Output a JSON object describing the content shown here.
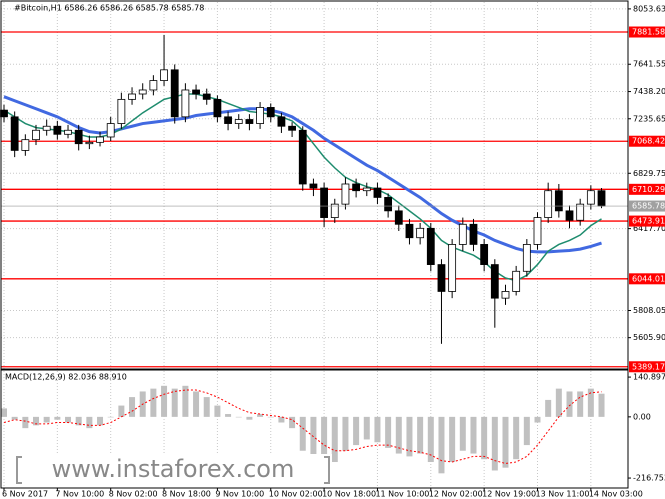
{
  "watermark": "www.instaforex.com",
  "chart_data": [
    {
      "type": "candlestick",
      "title": "#Bitcoin,H1  6586.26 6586.26 6585.78 6585.78",
      "categories": [
        "6 Nov 2017",
        null,
        null,
        null,
        null,
        "7 Nov 10:00",
        null,
        null,
        null,
        null,
        "8 Nov 02:00",
        null,
        null,
        null,
        null,
        "8 Nov 18:00",
        null,
        null,
        null,
        null,
        "9 Nov 10:00",
        null,
        null,
        null,
        null,
        "10 Nov 02:00",
        null,
        null,
        null,
        null,
        "10 Nov 18:00",
        null,
        null,
        null,
        null,
        "11 Nov 10:00",
        null,
        null,
        null,
        null,
        "12 Nov 02:00",
        null,
        null,
        null,
        null,
        "12 Nov 19:00",
        null,
        null,
        null,
        null,
        "13 Nov 11:00",
        null,
        null,
        null,
        null,
        "14 Nov 03:00",
        null
      ],
      "open": [
        7300,
        7250,
        7000,
        7080,
        7150,
        7180,
        7120,
        7150,
        7050,
        7060,
        7100,
        7200,
        7380,
        7420,
        7450,
        7520,
        7600,
        7250,
        7450,
        7420,
        7380,
        7250,
        7200,
        7230,
        7200,
        7320,
        7250,
        7180,
        7150,
        6750,
        6720,
        6500,
        6600,
        6750,
        6700,
        6720,
        6650,
        6550,
        6450,
        6350,
        6420,
        6150,
        5950,
        6300,
        6450,
        6300,
        6150,
        5900,
        5950,
        6100,
        6300,
        6500,
        6700,
        6550,
        6480,
        6600,
        6700
      ],
      "high": [
        7340,
        7290,
        7120,
        7190,
        7230,
        7220,
        7190,
        7190,
        7110,
        7140,
        7250,
        7430,
        7470,
        7500,
        7560,
        7860,
        7640,
        7500,
        7490,
        7460,
        7410,
        7290,
        7270,
        7270,
        7360,
        7350,
        7280,
        7210,
        7180,
        6790,
        6760,
        6640,
        6800,
        6790,
        6760,
        6760,
        6680,
        6590,
        6490,
        6460,
        6460,
        6190,
        6340,
        6500,
        6490,
        6340,
        6190,
        6000,
        6140,
        6340,
        6540,
        6760,
        6750,
        6590,
        6640,
        6740,
        6720
      ],
      "low": [
        7210,
        6950,
        6960,
        7040,
        7110,
        7080,
        7090,
        7000,
        7010,
        7030,
        7070,
        7160,
        7340,
        7380,
        7410,
        7480,
        7200,
        7210,
        7380,
        7340,
        7210,
        7150,
        7160,
        7150,
        7160,
        7210,
        7130,
        7100,
        6700,
        6660,
        6430,
        6460,
        6560,
        6650,
        6660,
        6600,
        6500,
        6400,
        6300,
        6300,
        6100,
        5560,
        5900,
        6250,
        6250,
        6100,
        5680,
        5850,
        5920,
        6060,
        6260,
        6460,
        6500,
        6420,
        6440,
        6560,
        6570
      ],
      "close": [
        7250,
        7000,
        7080,
        7150,
        7180,
        7120,
        7150,
        7050,
        7060,
        7100,
        7200,
        7380,
        7420,
        7450,
        7520,
        7600,
        7250,
        7450,
        7420,
        7380,
        7250,
        7200,
        7230,
        7200,
        7320,
        7250,
        7180,
        7150,
        6750,
        6720,
        6500,
        6600,
        6750,
        6700,
        6720,
        6650,
        6550,
        6450,
        6350,
        6420,
        6150,
        5950,
        6300,
        6450,
        6300,
        6150,
        5900,
        5950,
        6100,
        6300,
        6500,
        6700,
        6550,
        6480,
        6600,
        6700,
        6585.78
      ],
      "moving_averages": [
        {
          "color": "#4169e1",
          "values": [
            7400,
            7370,
            7340,
            7310,
            7280,
            7250,
            7210,
            7170,
            7140,
            7130,
            7140,
            7160,
            7180,
            7200,
            7210,
            7220,
            7230,
            7240,
            7260,
            7270,
            7280,
            7290,
            7300,
            7310,
            7310,
            7300,
            7280,
            7250,
            7200,
            7150,
            7090,
            7040,
            6990,
            6940,
            6890,
            6850,
            6800,
            6750,
            6700,
            6650,
            6590,
            6530,
            6480,
            6440,
            6400,
            6370,
            6330,
            6300,
            6270,
            6250,
            6245,
            6245,
            6250,
            6255,
            6265,
            6285,
            6310
          ]
        },
        {
          "color": "#1e8c6e",
          "values": [
            7300,
            7250,
            7200,
            7170,
            7160,
            7150,
            7140,
            7120,
            7100,
            7100,
            7120,
            7160,
            7220,
            7280,
            7330,
            7380,
            7400,
            7420,
            7420,
            7400,
            7380,
            7350,
            7320,
            7290,
            7280,
            7270,
            7250,
            7220,
            7150,
            7050,
            6950,
            6870,
            6800,
            6760,
            6730,
            6710,
            6670,
            6610,
            6550,
            6490,
            6420,
            6330,
            6280,
            6250,
            6220,
            6170,
            6100,
            6050,
            6030,
            6070,
            6150,
            6250,
            6300,
            6330,
            6370,
            6440,
            6490
          ]
        }
      ],
      "levels": {
        "color": "#ff0000",
        "values": [
          7881.58,
          7068.42,
          6710.29,
          6473.91,
          6044.01,
          5389.17
        ]
      },
      "ylim": [
        5380,
        8105
      ],
      "yticks": [
        8053.63,
        7641.55,
        {
          "value": 7438.2,
          "label": "7438.20"
        },
        7235.65,
        6829.75,
        {
          "value": 6417.7,
          "label": "6417.70"
        },
        5808.05,
        {
          "value": 5605.9,
          "label": "5605.90"
        }
      ],
      "grid": true
    },
    {
      "type": "macd",
      "title": "MACD(12,26,9) 82.036 88.910",
      "histogram": {
        "color": "#c0c0c0",
        "values": [
          30,
          -10,
          -40,
          -30,
          -20,
          -10,
          -20,
          -30,
          -40,
          -30,
          0,
          40,
          70,
          90,
          100,
          110,
          100,
          110,
          90,
          70,
          40,
          10,
          0,
          -10,
          10,
          0,
          -20,
          -40,
          -120,
          -150,
          -180,
          -160,
          -120,
          -100,
          -80,
          -90,
          -110,
          -130,
          -140,
          -130,
          -160,
          -200,
          -160,
          -120,
          -130,
          -150,
          -190,
          -180,
          -150,
          -100,
          -20,
          60,
          100,
          90,
          90,
          100,
          82.036
        ]
      },
      "signal": {
        "color": "#ff0000",
        "values": [
          -20,
          -10,
          -15,
          -25,
          -25,
          -20,
          -20,
          -25,
          -30,
          -30,
          -20,
          0,
          20,
          45,
          65,
          80,
          90,
          95,
          95,
          85,
          70,
          50,
          30,
          15,
          10,
          5,
          0,
          -10,
          -40,
          -70,
          -100,
          -120,
          -120,
          -115,
          -105,
          -100,
          -100,
          -110,
          -120,
          -125,
          -135,
          -155,
          -160,
          -150,
          -140,
          -140,
          -155,
          -165,
          -160,
          -140,
          -100,
          -50,
          0,
          40,
          70,
          85,
          88.91
        ]
      },
      "ylim": [
        -252,
        166
      ],
      "yticks": [
        140.897,
        {
          "value": 0,
          "label": "0.00"
        },
        -216.753
      ]
    }
  ]
}
